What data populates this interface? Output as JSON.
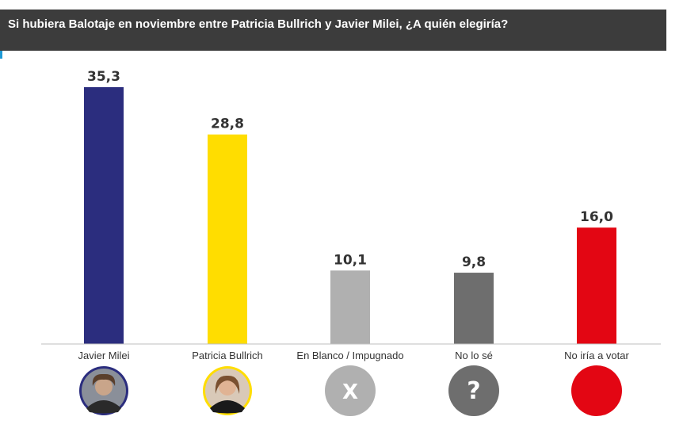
{
  "chart_data": {
    "type": "bar",
    "title": "Si hubiera Balotaje en noviembre entre Patricia Bullrich y Javier Milei, ¿A quién elegiría?",
    "categories": [
      "Javier Milei",
      "Patricia Bullrich",
      "En Blanco / Impugnado",
      "No lo sé",
      "No iría a votar"
    ],
    "values": [
      35.3,
      28.8,
      10.1,
      9.8,
      16.0
    ],
    "value_labels": [
      "35,3",
      "28,8",
      "10,1",
      "9,8",
      "16,0"
    ],
    "colors": [
      "#2b2d7e",
      "#ffdd00",
      "#b0b0b0",
      "#6e6e6e",
      "#e30613"
    ],
    "icons": [
      {
        "name": "milei-avatar-icon",
        "type": "avatar",
        "bg": "#2b2d7e"
      },
      {
        "name": "bullrich-avatar-icon",
        "type": "avatar",
        "bg": "#ffdd00"
      },
      {
        "name": "blank-vote-icon",
        "type": "glyph",
        "glyph": "X",
        "bg": "#b0b0b0"
      },
      {
        "name": "question-mark-icon",
        "type": "glyph",
        "glyph": "?",
        "bg": "#6e6e6e"
      },
      {
        "name": "red-dot-icon",
        "type": "plain",
        "bg": "#e30613"
      }
    ],
    "ylim": [
      0,
      40
    ],
    "grid": false,
    "legend": "none"
  }
}
